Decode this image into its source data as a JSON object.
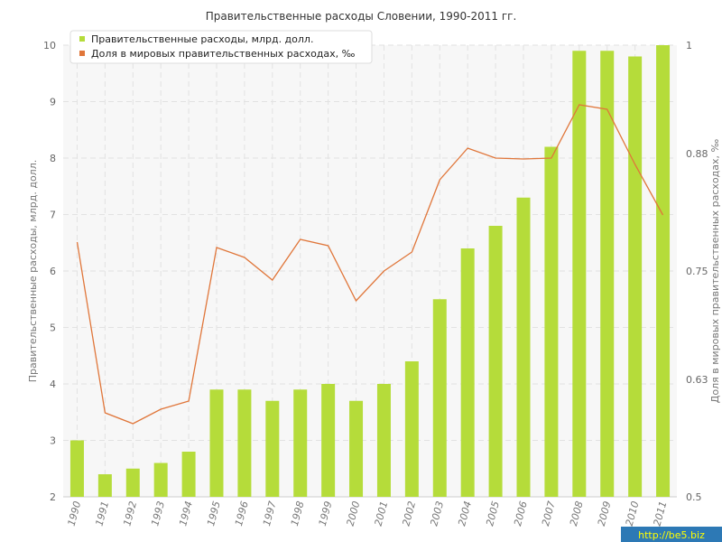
{
  "chart_data": {
    "type": "bar+line",
    "title": "Правительственные расходы Словении, 1990-2011 гг.",
    "categories": [
      "1990",
      "1991",
      "1992",
      "1993",
      "1994",
      "1995",
      "1996",
      "1997",
      "1998",
      "1999",
      "2000",
      "2001",
      "2002",
      "2003",
      "2004",
      "2005",
      "2006",
      "2007",
      "2008",
      "2009",
      "2010",
      "2011"
    ],
    "series": [
      {
        "name": "Правительственные расходы, млрд. долл.",
        "type": "bar",
        "axis": "left",
        "color": "#b5dc3a",
        "values": [
          3.0,
          2.4,
          2.5,
          2.6,
          2.8,
          3.9,
          3.9,
          3.7,
          3.9,
          4.0,
          3.7,
          4.0,
          4.4,
          5.5,
          6.4,
          6.8,
          7.3,
          8.2,
          9.9,
          9.9,
          9.8,
          10.0
        ]
      },
      {
        "name": "Доля в мировых правительственных расходах, ‰",
        "type": "line",
        "axis": "right",
        "color": "#e0763a",
        "values": [
          0.782,
          0.593,
          0.581,
          0.597,
          0.606,
          0.776,
          0.765,
          0.74,
          0.785,
          0.778,
          0.717,
          0.75,
          0.771,
          0.851,
          0.886,
          0.875,
          0.874,
          0.875,
          0.934,
          0.929,
          0.868,
          0.812
        ]
      }
    ],
    "y_left": {
      "label": "Правительственные расходы, млрд. долл.",
      "min": 2,
      "max": 10,
      "ticks": [
        "2",
        "3",
        "4",
        "5",
        "6",
        "7",
        "8",
        "9",
        "10"
      ]
    },
    "y_right": {
      "label": "Доля в мировых правительственных расходах, ‰",
      "min": 0.5,
      "max": 1.0,
      "ticks": [
        "0.5",
        "0.63",
        "0.75",
        "0.88",
        "1"
      ]
    },
    "grid": true,
    "legend_position": "top-left"
  },
  "watermark": "http://be5.biz"
}
